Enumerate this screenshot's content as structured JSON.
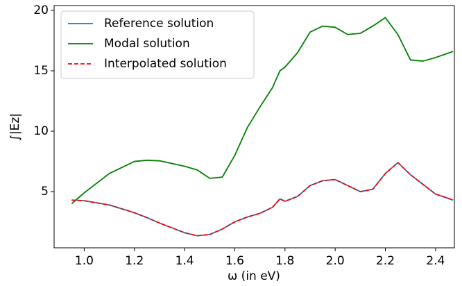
{
  "chart_data": {
    "type": "line",
    "x_label": "ω (in eV)",
    "y_label": "∫|Ez|",
    "x": [
      0.95,
      1.0,
      1.1,
      1.2,
      1.25,
      1.3,
      1.4,
      1.45,
      1.5,
      1.55,
      1.6,
      1.65,
      1.7,
      1.75,
      1.78,
      1.8,
      1.85,
      1.9,
      1.95,
      2.0,
      2.05,
      2.1,
      2.15,
      2.2,
      2.25,
      2.3,
      2.35,
      2.4,
      2.47
    ],
    "series": [
      {
        "name": "Reference solution",
        "color": "#1f77b4",
        "dash": false,
        "values": [
          4.3,
          4.25,
          3.9,
          3.25,
          2.85,
          2.4,
          1.6,
          1.35,
          1.45,
          1.9,
          2.5,
          2.9,
          3.2,
          3.7,
          4.4,
          4.2,
          4.6,
          5.5,
          5.9,
          6.0,
          5.5,
          5.0,
          5.2,
          6.5,
          7.4,
          6.4,
          5.6,
          4.8,
          4.3
        ]
      },
      {
        "name": "Modal solution",
        "color": "#008000",
        "dash": false,
        "values": [
          4.0,
          4.9,
          6.5,
          7.5,
          7.6,
          7.55,
          7.1,
          6.8,
          6.1,
          6.2,
          8.0,
          10.3,
          12.0,
          13.6,
          15.0,
          15.3,
          16.5,
          18.2,
          18.7,
          18.6,
          18.0,
          18.1,
          18.7,
          19.4,
          18.0,
          15.9,
          15.8,
          16.1,
          16.6
        ]
      },
      {
        "name": "Interpolated solution",
        "color": "#ff0000",
        "dash": true,
        "values": [
          4.3,
          4.25,
          3.9,
          3.25,
          2.85,
          2.4,
          1.6,
          1.35,
          1.45,
          1.9,
          2.5,
          2.9,
          3.2,
          3.7,
          4.4,
          4.2,
          4.6,
          5.5,
          5.9,
          6.0,
          5.5,
          5.0,
          5.2,
          6.5,
          7.4,
          6.4,
          5.6,
          4.8,
          4.3
        ]
      }
    ],
    "xlim": [
      0.88,
      2.475
    ],
    "ylim": [
      0.35,
      20.4
    ],
    "xticks": [
      {
        "value": 1.0,
        "label": "1.0"
      },
      1.2,
      1.4,
      1.6,
      1.8,
      {
        "value": 2.0,
        "label": "2.0"
      },
      2.2,
      2.4
    ],
    "yticks": [
      5,
      10,
      15,
      20
    ],
    "legend": "upper-left",
    "grid": false
  }
}
